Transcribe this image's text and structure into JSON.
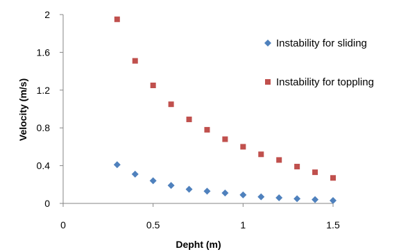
{
  "chart_data": {
    "type": "scatter",
    "xlabel": "Depht (m)",
    "ylabel": "Velocity (m/s)",
    "xlim": [
      0,
      1.5
    ],
    "ylim": [
      0,
      2
    ],
    "x_ticks": [
      0,
      0.5,
      1,
      1.5
    ],
    "x_tick_labels": [
      "0",
      "0.5",
      "1",
      "1.5"
    ],
    "y_ticks": [
      0,
      0.4,
      0.8,
      1.2,
      1.6,
      2
    ],
    "y_tick_labels": [
      "0",
      "0.4",
      "0.8",
      "1.2",
      "1.6",
      "2"
    ],
    "grid": false,
    "legend_position": "right",
    "series": [
      {
        "name": "Instability for sliding",
        "marker": "diamond",
        "color": "#4f81bd",
        "x": [
          0.3,
          0.4,
          0.5,
          0.6,
          0.7,
          0.8,
          0.9,
          1.0,
          1.1,
          1.2,
          1.3,
          1.4,
          1.5
        ],
        "y": [
          0.41,
          0.31,
          0.24,
          0.19,
          0.15,
          0.13,
          0.11,
          0.09,
          0.07,
          0.06,
          0.05,
          0.04,
          0.03
        ]
      },
      {
        "name": "Instability for toppling",
        "marker": "square",
        "color": "#c0504d",
        "x": [
          0.3,
          0.4,
          0.5,
          0.6,
          0.7,
          0.8,
          0.9,
          1.0,
          1.1,
          1.2,
          1.3,
          1.4,
          1.5
        ],
        "y": [
          1.95,
          1.51,
          1.25,
          1.05,
          0.89,
          0.78,
          0.68,
          0.6,
          0.52,
          0.46,
          0.39,
          0.33,
          0.27
        ]
      }
    ]
  }
}
